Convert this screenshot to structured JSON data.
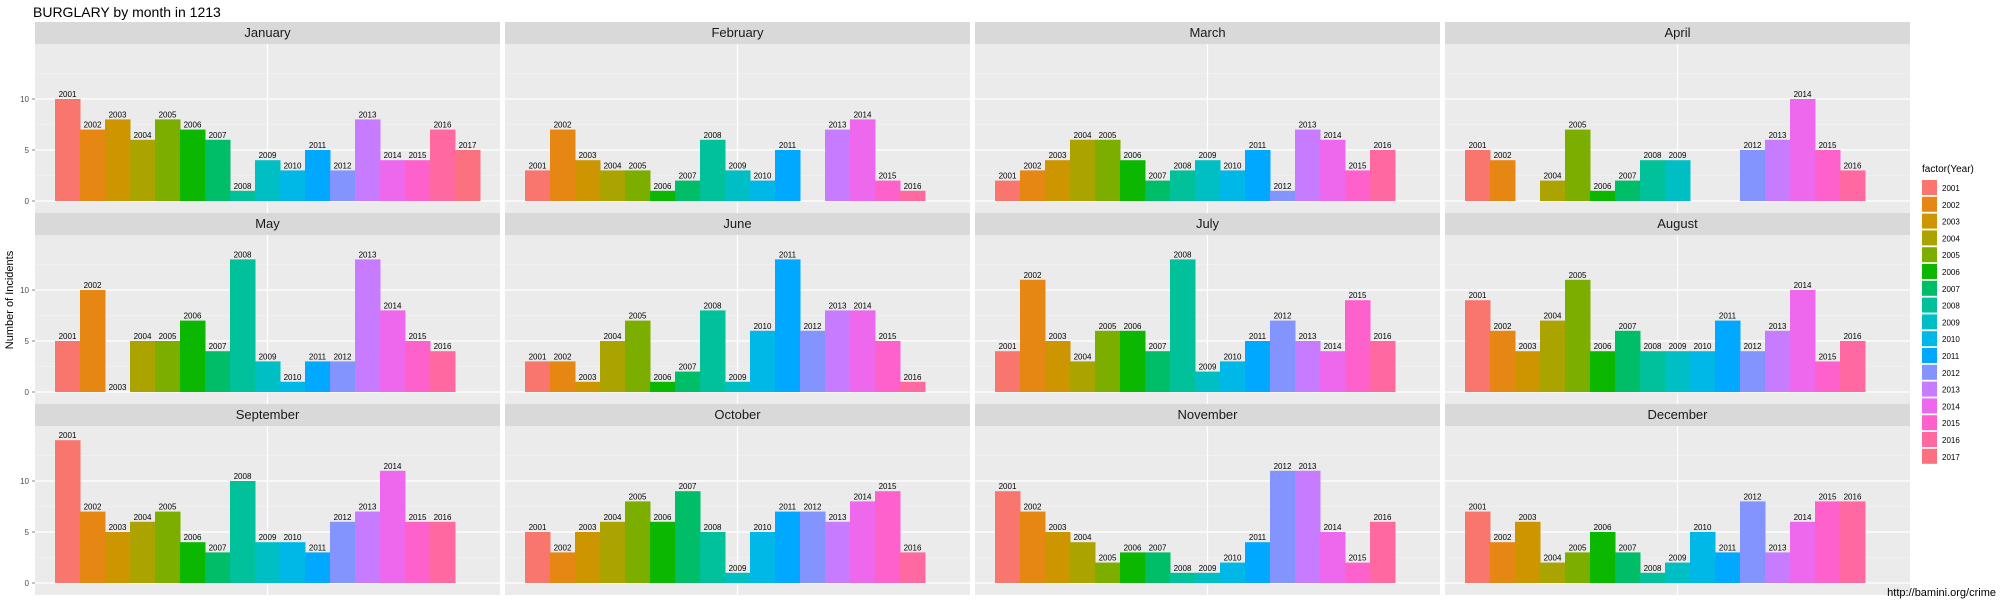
{
  "chart_data": {
    "type": "bar",
    "title": "BURGLARY by month in 1213",
    "ylabel": "Number of Incidents",
    "xlabel": "",
    "ylim": [
      0,
      15
    ],
    "yticks": [
      0,
      5,
      10
    ],
    "grid": true,
    "legend": {
      "title": "factor(Year)",
      "position": "right",
      "entries": [
        "2001",
        "2002",
        "2003",
        "2004",
        "2005",
        "2006",
        "2007",
        "2008",
        "2009",
        "2010",
        "2011",
        "2012",
        "2013",
        "2014",
        "2015",
        "2016",
        "2017"
      ]
    },
    "year_colors": {
      "2001": "#F8766D",
      "2002": "#E68613",
      "2003": "#CD9600",
      "2004": "#ABA300",
      "2005": "#7CAE00",
      "2006": "#0CB702",
      "2007": "#00BE67",
      "2008": "#00C19A",
      "2009": "#00BFC4",
      "2010": "#00B8E7",
      "2011": "#00A9FF",
      "2012": "#8494FF",
      "2013": "#C77CFF",
      "2014": "#ED68ED",
      "2015": "#FF61CC",
      "2016": "#FF68A1",
      "2017": "#FC717F"
    },
    "panels": [
      {
        "month": "January",
        "bars": [
          {
            "year": "2001",
            "value": 10
          },
          {
            "year": "2002",
            "value": 7
          },
          {
            "year": "2003",
            "value": 8
          },
          {
            "year": "2004",
            "value": 6
          },
          {
            "year": "2005",
            "value": 8
          },
          {
            "year": "2006",
            "value": 7
          },
          {
            "year": "2007",
            "value": 6
          },
          {
            "year": "2008",
            "value": 1
          },
          {
            "year": "2009",
            "value": 4
          },
          {
            "year": "2010",
            "value": 3
          },
          {
            "year": "2011",
            "value": 5
          },
          {
            "year": "2012",
            "value": 3
          },
          {
            "year": "2013",
            "value": 8
          },
          {
            "year": "2014",
            "value": 4
          },
          {
            "year": "2015",
            "value": 4
          },
          {
            "year": "2016",
            "value": 7
          },
          {
            "year": "2017",
            "value": 5
          }
        ]
      },
      {
        "month": "February",
        "bars": [
          {
            "year": "2001",
            "value": 3
          },
          {
            "year": "2002",
            "value": 7
          },
          {
            "year": "2003",
            "value": 4
          },
          {
            "year": "2004",
            "value": 3
          },
          {
            "year": "2005",
            "value": 3
          },
          {
            "year": "2006",
            "value": 1
          },
          {
            "year": "2007",
            "value": 2
          },
          {
            "year": "2008",
            "value": 6
          },
          {
            "year": "2009",
            "value": 3
          },
          {
            "year": "2010",
            "value": 2
          },
          {
            "year": "2011",
            "value": 5
          },
          {
            "year": "2013",
            "value": 7
          },
          {
            "year": "2014",
            "value": 8
          },
          {
            "year": "2015",
            "value": 2
          },
          {
            "year": "2016",
            "value": 1
          }
        ]
      },
      {
        "month": "March",
        "bars": [
          {
            "year": "2001",
            "value": 2
          },
          {
            "year": "2002",
            "value": 3
          },
          {
            "year": "2003",
            "value": 4
          },
          {
            "year": "2004",
            "value": 6
          },
          {
            "year": "2005",
            "value": 6
          },
          {
            "year": "2006",
            "value": 4
          },
          {
            "year": "2007",
            "value": 2
          },
          {
            "year": "2008",
            "value": 3
          },
          {
            "year": "2009",
            "value": 4
          },
          {
            "year": "2010",
            "value": 3
          },
          {
            "year": "2011",
            "value": 5
          },
          {
            "year": "2012",
            "value": 1
          },
          {
            "year": "2013",
            "value": 7
          },
          {
            "year": "2014",
            "value": 6
          },
          {
            "year": "2015",
            "value": 3
          },
          {
            "year": "2016",
            "value": 5
          }
        ]
      },
      {
        "month": "April",
        "bars": [
          {
            "year": "2001",
            "value": 5
          },
          {
            "year": "2002",
            "value": 4
          },
          {
            "year": "2004",
            "value": 2
          },
          {
            "year": "2005",
            "value": 7
          },
          {
            "year": "2006",
            "value": 1
          },
          {
            "year": "2007",
            "value": 2
          },
          {
            "year": "2008",
            "value": 4
          },
          {
            "year": "2009",
            "value": 4
          },
          {
            "year": "2012",
            "value": 5
          },
          {
            "year": "2013",
            "value": 6
          },
          {
            "year": "2014",
            "value": 10
          },
          {
            "year": "2015",
            "value": 5
          },
          {
            "year": "2016",
            "value": 3
          }
        ]
      },
      {
        "month": "May",
        "bars": [
          {
            "year": "2001",
            "value": 5
          },
          {
            "year": "2002",
            "value": 10
          },
          {
            "year": "2003",
            "value": 0
          },
          {
            "year": "2004",
            "value": 5
          },
          {
            "year": "2005",
            "value": 5
          },
          {
            "year": "2006",
            "value": 7
          },
          {
            "year": "2007",
            "value": 4
          },
          {
            "year": "2008",
            "value": 13
          },
          {
            "year": "2009",
            "value": 3
          },
          {
            "year": "2010",
            "value": 1
          },
          {
            "year": "2011",
            "value": 3
          },
          {
            "year": "2012",
            "value": 3
          },
          {
            "year": "2013",
            "value": 13
          },
          {
            "year": "2014",
            "value": 8
          },
          {
            "year": "2015",
            "value": 5
          },
          {
            "year": "2016",
            "value": 4
          }
        ]
      },
      {
        "month": "June",
        "bars": [
          {
            "year": "2001",
            "value": 3
          },
          {
            "year": "2002",
            "value": 3
          },
          {
            "year": "2003",
            "value": 1
          },
          {
            "year": "2004",
            "value": 5
          },
          {
            "year": "2005",
            "value": 7
          },
          {
            "year": "2006",
            "value": 1
          },
          {
            "year": "2007",
            "value": 2
          },
          {
            "year": "2008",
            "value": 8
          },
          {
            "year": "2009",
            "value": 1
          },
          {
            "year": "2010",
            "value": 6
          },
          {
            "year": "2011",
            "value": 13
          },
          {
            "year": "2012",
            "value": 6
          },
          {
            "year": "2013",
            "value": 8
          },
          {
            "year": "2014",
            "value": 8
          },
          {
            "year": "2015",
            "value": 5
          },
          {
            "year": "2016",
            "value": 1
          }
        ]
      },
      {
        "month": "July",
        "bars": [
          {
            "year": "2001",
            "value": 4
          },
          {
            "year": "2002",
            "value": 11
          },
          {
            "year": "2003",
            "value": 5
          },
          {
            "year": "2004",
            "value": 3
          },
          {
            "year": "2005",
            "value": 6
          },
          {
            "year": "2006",
            "value": 6
          },
          {
            "year": "2007",
            "value": 4
          },
          {
            "year": "2008",
            "value": 13
          },
          {
            "year": "2009",
            "value": 2
          },
          {
            "year": "2010",
            "value": 3
          },
          {
            "year": "2011",
            "value": 5
          },
          {
            "year": "2012",
            "value": 7
          },
          {
            "year": "2013",
            "value": 5
          },
          {
            "year": "2014",
            "value": 4
          },
          {
            "year": "2015",
            "value": 9
          },
          {
            "year": "2016",
            "value": 5
          }
        ]
      },
      {
        "month": "August",
        "bars": [
          {
            "year": "2001",
            "value": 9
          },
          {
            "year": "2002",
            "value": 6
          },
          {
            "year": "2003",
            "value": 4
          },
          {
            "year": "2004",
            "value": 7
          },
          {
            "year": "2005",
            "value": 11
          },
          {
            "year": "2006",
            "value": 4
          },
          {
            "year": "2007",
            "value": 6
          },
          {
            "year": "2008",
            "value": 4
          },
          {
            "year": "2009",
            "value": 4
          },
          {
            "year": "2010",
            "value": 4
          },
          {
            "year": "2011",
            "value": 7
          },
          {
            "year": "2012",
            "value": 4
          },
          {
            "year": "2013",
            "value": 6
          },
          {
            "year": "2014",
            "value": 10
          },
          {
            "year": "2015",
            "value": 3
          },
          {
            "year": "2016",
            "value": 5
          }
        ]
      },
      {
        "month": "September",
        "bars": [
          {
            "year": "2001",
            "value": 14
          },
          {
            "year": "2002",
            "value": 7
          },
          {
            "year": "2003",
            "value": 5
          },
          {
            "year": "2004",
            "value": 6
          },
          {
            "year": "2005",
            "value": 7
          },
          {
            "year": "2006",
            "value": 4
          },
          {
            "year": "2007",
            "value": 3
          },
          {
            "year": "2008",
            "value": 10
          },
          {
            "year": "2009",
            "value": 4
          },
          {
            "year": "2010",
            "value": 4
          },
          {
            "year": "2011",
            "value": 3
          },
          {
            "year": "2012",
            "value": 6
          },
          {
            "year": "2013",
            "value": 7
          },
          {
            "year": "2014",
            "value": 11
          },
          {
            "year": "2015",
            "value": 6
          },
          {
            "year": "2016",
            "value": 6
          }
        ]
      },
      {
        "month": "October",
        "bars": [
          {
            "year": "2001",
            "value": 5
          },
          {
            "year": "2002",
            "value": 3
          },
          {
            "year": "2003",
            "value": 5
          },
          {
            "year": "2004",
            "value": 6
          },
          {
            "year": "2005",
            "value": 8
          },
          {
            "year": "2006",
            "value": 6
          },
          {
            "year": "2007",
            "value": 9
          },
          {
            "year": "2008",
            "value": 5
          },
          {
            "year": "2009",
            "value": 1
          },
          {
            "year": "2010",
            "value": 5
          },
          {
            "year": "2011",
            "value": 7
          },
          {
            "year": "2012",
            "value": 7
          },
          {
            "year": "2013",
            "value": 6
          },
          {
            "year": "2014",
            "value": 8
          },
          {
            "year": "2015",
            "value": 9
          },
          {
            "year": "2016",
            "value": 3
          }
        ]
      },
      {
        "month": "November",
        "bars": [
          {
            "year": "2001",
            "value": 9
          },
          {
            "year": "2002",
            "value": 7
          },
          {
            "year": "2003",
            "value": 5
          },
          {
            "year": "2004",
            "value": 4
          },
          {
            "year": "2005",
            "value": 2
          },
          {
            "year": "2006",
            "value": 3
          },
          {
            "year": "2007",
            "value": 3
          },
          {
            "year": "2008",
            "value": 1
          },
          {
            "year": "2009",
            "value": 1
          },
          {
            "year": "2010",
            "value": 2
          },
          {
            "year": "2011",
            "value": 4
          },
          {
            "year": "2012",
            "value": 11
          },
          {
            "year": "2013",
            "value": 11
          },
          {
            "year": "2014",
            "value": 5
          },
          {
            "year": "2015",
            "value": 2
          },
          {
            "year": "2016",
            "value": 6
          }
        ]
      },
      {
        "month": "December",
        "bars": [
          {
            "year": "2001",
            "value": 7
          },
          {
            "year": "2002",
            "value": 4
          },
          {
            "year": "2003",
            "value": 6
          },
          {
            "year": "2004",
            "value": 2
          },
          {
            "year": "2005",
            "value": 3
          },
          {
            "year": "2006",
            "value": 5
          },
          {
            "year": "2007",
            "value": 3
          },
          {
            "year": "2008",
            "value": 1
          },
          {
            "year": "2009",
            "value": 2
          },
          {
            "year": "2010",
            "value": 5
          },
          {
            "year": "2011",
            "value": 3
          },
          {
            "year": "2012",
            "value": 8
          },
          {
            "year": "2013",
            "value": 3
          },
          {
            "year": "2014",
            "value": 6
          },
          {
            "year": "2015",
            "value": 8
          },
          {
            "year": "2016",
            "value": 8
          }
        ]
      }
    ]
  },
  "footer": {
    "source": "http://bamini.org/crime"
  }
}
